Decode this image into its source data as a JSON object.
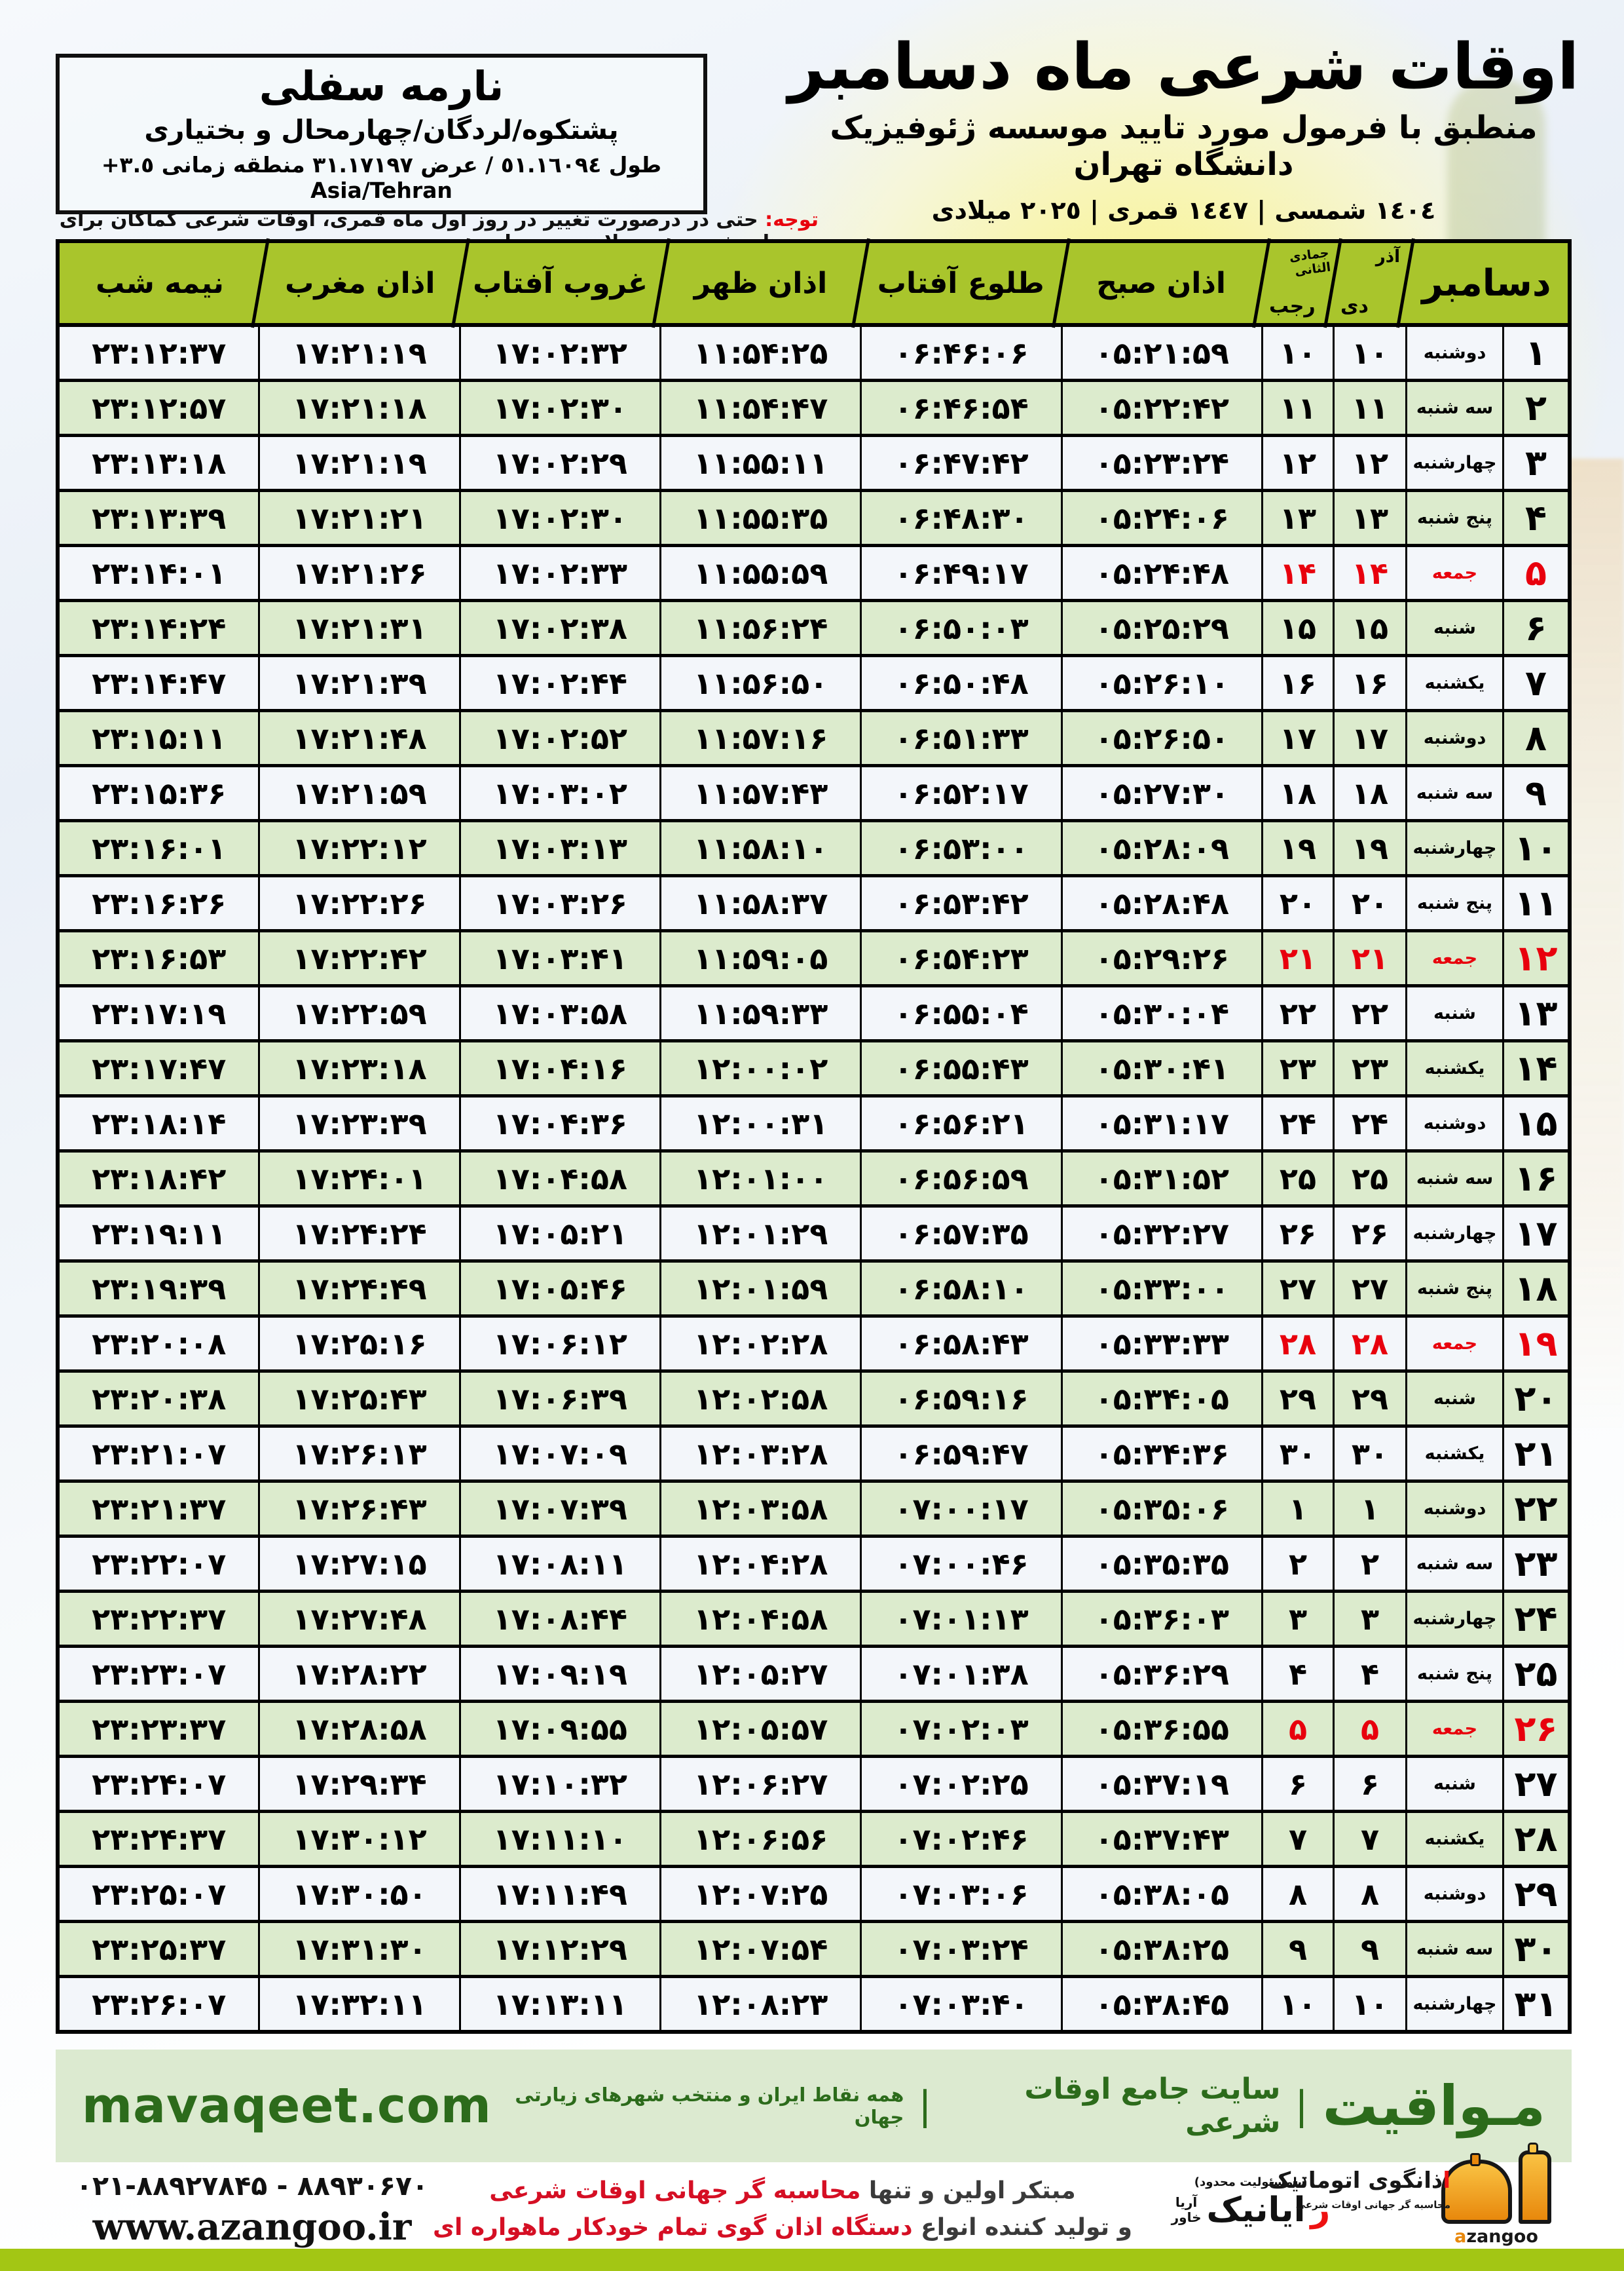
{
  "location_box": {
    "name": "نارمه سفلی",
    "region": "پشتکوه/لردگان/چهارمحال و بختیاری",
    "coords": "طول ٥١.١٦٠٩٤ / عرض ٣١.١٧١٩٧ منطقه زمانی ٣.٥+ Asia/Tehran"
  },
  "header": {
    "title": "اوقات شرعی ماه دسامبر",
    "subtitle": "منطبق با فرمول مورد تایید موسسه ژئوفیزیک دانشگاه تهران",
    "years": "١٤٠٤ شمسی | ١٤٤٧ قمری | ٢٠٢٥ میلادی"
  },
  "note": {
    "label": "توجه:",
    "text": " حتی در درصورت تغییر در روز اول ماه قمری، اوقات شرعی کماکان برای روزهای شمسی و میلادی معتبر است."
  },
  "table": {
    "headers": {
      "month": "دسامبر",
      "solar_top": "آذر",
      "solar_bottom": "دی",
      "lunar_top": "جمادی الثانی",
      "lunar_bottom": "رجب",
      "fajr": "اذان صبح",
      "sunrise": "طلوع آفتاب",
      "dhuhr": "اذان ظهر",
      "sunset": "غروب آفتاب",
      "maghrib": "اذان مغرب",
      "midnight": "نیمه شب"
    },
    "rows": [
      {
        "day": "۱",
        "weekday": "دوشنبه",
        "solar": "۱۰",
        "lunar": "۱۰",
        "fajr": "۰۵:۲۱:۵۹",
        "sunrise": "۰۶:۴۶:۰۶",
        "dhuhr": "۱۱:۵۴:۲۵",
        "sunset": "۱۷:۰۲:۳۲",
        "maghrib": "۱۷:۲۱:۱۹",
        "midnight": "۲۳:۱۲:۳۷",
        "friday": false
      },
      {
        "day": "۲",
        "weekday": "سه شنبه",
        "solar": "۱۱",
        "lunar": "۱۱",
        "fajr": "۰۵:۲۲:۴۲",
        "sunrise": "۰۶:۴۶:۵۴",
        "dhuhr": "۱۱:۵۴:۴۷",
        "sunset": "۱۷:۰۲:۳۰",
        "maghrib": "۱۷:۲۱:۱۸",
        "midnight": "۲۳:۱۲:۵۷",
        "friday": false
      },
      {
        "day": "۳",
        "weekday": "چهارشنبه",
        "solar": "۱۲",
        "lunar": "۱۲",
        "fajr": "۰۵:۲۳:۲۴",
        "sunrise": "۰۶:۴۷:۴۲",
        "dhuhr": "۱۱:۵۵:۱۱",
        "sunset": "۱۷:۰۲:۲۹",
        "maghrib": "۱۷:۲۱:۱۹",
        "midnight": "۲۳:۱۳:۱۸",
        "friday": false
      },
      {
        "day": "۴",
        "weekday": "پنج شنبه",
        "solar": "۱۳",
        "lunar": "۱۳",
        "fajr": "۰۵:۲۴:۰۶",
        "sunrise": "۰۶:۴۸:۳۰",
        "dhuhr": "۱۱:۵۵:۳۵",
        "sunset": "۱۷:۰۲:۳۰",
        "maghrib": "۱۷:۲۱:۲۱",
        "midnight": "۲۳:۱۳:۳۹",
        "friday": false
      },
      {
        "day": "۵",
        "weekday": "جمعه",
        "solar": "۱۴",
        "lunar": "۱۴",
        "fajr": "۰۵:۲۴:۴۸",
        "sunrise": "۰۶:۴۹:۱۷",
        "dhuhr": "۱۱:۵۵:۵۹",
        "sunset": "۱۷:۰۲:۳۳",
        "maghrib": "۱۷:۲۱:۲۶",
        "midnight": "۲۳:۱۴:۰۱",
        "friday": true
      },
      {
        "day": "۶",
        "weekday": "شنبه",
        "solar": "۱۵",
        "lunar": "۱۵",
        "fajr": "۰۵:۲۵:۲۹",
        "sunrise": "۰۶:۵۰:۰۳",
        "dhuhr": "۱۱:۵۶:۲۴",
        "sunset": "۱۷:۰۲:۳۸",
        "maghrib": "۱۷:۲۱:۳۱",
        "midnight": "۲۳:۱۴:۲۴",
        "friday": false
      },
      {
        "day": "۷",
        "weekday": "یکشنبه",
        "solar": "۱۶",
        "lunar": "۱۶",
        "fajr": "۰۵:۲۶:۱۰",
        "sunrise": "۰۶:۵۰:۴۸",
        "dhuhr": "۱۱:۵۶:۵۰",
        "sunset": "۱۷:۰۲:۴۴",
        "maghrib": "۱۷:۲۱:۳۹",
        "midnight": "۲۳:۱۴:۴۷",
        "friday": false
      },
      {
        "day": "۸",
        "weekday": "دوشنبه",
        "solar": "۱۷",
        "lunar": "۱۷",
        "fajr": "۰۵:۲۶:۵۰",
        "sunrise": "۰۶:۵۱:۳۳",
        "dhuhr": "۱۱:۵۷:۱۶",
        "sunset": "۱۷:۰۲:۵۲",
        "maghrib": "۱۷:۲۱:۴۸",
        "midnight": "۲۳:۱۵:۱۱",
        "friday": false
      },
      {
        "day": "۹",
        "weekday": "سه شنبه",
        "solar": "۱۸",
        "lunar": "۱۸",
        "fajr": "۰۵:۲۷:۳۰",
        "sunrise": "۰۶:۵۲:۱۷",
        "dhuhr": "۱۱:۵۷:۴۳",
        "sunset": "۱۷:۰۳:۰۲",
        "maghrib": "۱۷:۲۱:۵۹",
        "midnight": "۲۳:۱۵:۳۶",
        "friday": false
      },
      {
        "day": "۱۰",
        "weekday": "چهارشنبه",
        "solar": "۱۹",
        "lunar": "۱۹",
        "fajr": "۰۵:۲۸:۰۹",
        "sunrise": "۰۶:۵۳:۰۰",
        "dhuhr": "۱۱:۵۸:۱۰",
        "sunset": "۱۷:۰۳:۱۳",
        "maghrib": "۱۷:۲۲:۱۲",
        "midnight": "۲۳:۱۶:۰۱",
        "friday": false
      },
      {
        "day": "۱۱",
        "weekday": "پنج شنبه",
        "solar": "۲۰",
        "lunar": "۲۰",
        "fajr": "۰۵:۲۸:۴۸",
        "sunrise": "۰۶:۵۳:۴۲",
        "dhuhr": "۱۱:۵۸:۳۷",
        "sunset": "۱۷:۰۳:۲۶",
        "maghrib": "۱۷:۲۲:۲۶",
        "midnight": "۲۳:۱۶:۲۶",
        "friday": false
      },
      {
        "day": "۱۲",
        "weekday": "جمعه",
        "solar": "۲۱",
        "lunar": "۲۱",
        "fajr": "۰۵:۲۹:۲۶",
        "sunrise": "۰۶:۵۴:۲۳",
        "dhuhr": "۱۱:۵۹:۰۵",
        "sunset": "۱۷:۰۳:۴۱",
        "maghrib": "۱۷:۲۲:۴۲",
        "midnight": "۲۳:۱۶:۵۳",
        "friday": true
      },
      {
        "day": "۱۳",
        "weekday": "شنبه",
        "solar": "۲۲",
        "lunar": "۲۲",
        "fajr": "۰۵:۳۰:۰۴",
        "sunrise": "۰۶:۵۵:۰۴",
        "dhuhr": "۱۱:۵۹:۳۳",
        "sunset": "۱۷:۰۳:۵۸",
        "maghrib": "۱۷:۲۲:۵۹",
        "midnight": "۲۳:۱۷:۱۹",
        "friday": false
      },
      {
        "day": "۱۴",
        "weekday": "یکشنبه",
        "solar": "۲۳",
        "lunar": "۲۳",
        "fajr": "۰۵:۳۰:۴۱",
        "sunrise": "۰۶:۵۵:۴۳",
        "dhuhr": "۱۲:۰۰:۰۲",
        "sunset": "۱۷:۰۴:۱۶",
        "maghrib": "۱۷:۲۳:۱۸",
        "midnight": "۲۳:۱۷:۴۷",
        "friday": false
      },
      {
        "day": "۱۵",
        "weekday": "دوشنبه",
        "solar": "۲۴",
        "lunar": "۲۴",
        "fajr": "۰۵:۳۱:۱۷",
        "sunrise": "۰۶:۵۶:۲۱",
        "dhuhr": "۱۲:۰۰:۳۱",
        "sunset": "۱۷:۰۴:۳۶",
        "maghrib": "۱۷:۲۳:۳۹",
        "midnight": "۲۳:۱۸:۱۴",
        "friday": false
      },
      {
        "day": "۱۶",
        "weekday": "سه شنبه",
        "solar": "۲۵",
        "lunar": "۲۵",
        "fajr": "۰۵:۳۱:۵۲",
        "sunrise": "۰۶:۵۶:۵۹",
        "dhuhr": "۱۲:۰۱:۰۰",
        "sunset": "۱۷:۰۴:۵۸",
        "maghrib": "۱۷:۲۴:۰۱",
        "midnight": "۲۳:۱۸:۴۲",
        "friday": false
      },
      {
        "day": "۱۷",
        "weekday": "چهارشنبه",
        "solar": "۲۶",
        "lunar": "۲۶",
        "fajr": "۰۵:۳۲:۲۷",
        "sunrise": "۰۶:۵۷:۳۵",
        "dhuhr": "۱۲:۰۱:۲۹",
        "sunset": "۱۷:۰۵:۲۱",
        "maghrib": "۱۷:۲۴:۲۴",
        "midnight": "۲۳:۱۹:۱۱",
        "friday": false
      },
      {
        "day": "۱۸",
        "weekday": "پنج شنبه",
        "solar": "۲۷",
        "lunar": "۲۷",
        "fajr": "۰۵:۳۳:۰۰",
        "sunrise": "۰۶:۵۸:۱۰",
        "dhuhr": "۱۲:۰۱:۵۹",
        "sunset": "۱۷:۰۵:۴۶",
        "maghrib": "۱۷:۲۴:۴۹",
        "midnight": "۲۳:۱۹:۳۹",
        "friday": false
      },
      {
        "day": "۱۹",
        "weekday": "جمعه",
        "solar": "۲۸",
        "lunar": "۲۸",
        "fajr": "۰۵:۳۳:۳۳",
        "sunrise": "۰۶:۵۸:۴۳",
        "dhuhr": "۱۲:۰۲:۲۸",
        "sunset": "۱۷:۰۶:۱۲",
        "maghrib": "۱۷:۲۵:۱۶",
        "midnight": "۲۳:۲۰:۰۸",
        "friday": true
      },
      {
        "day": "۲۰",
        "weekday": "شنبه",
        "solar": "۲۹",
        "lunar": "۲۹",
        "fajr": "۰۵:۳۴:۰۵",
        "sunrise": "۰۶:۵۹:۱۶",
        "dhuhr": "۱۲:۰۲:۵۸",
        "sunset": "۱۷:۰۶:۳۹",
        "maghrib": "۱۷:۲۵:۴۳",
        "midnight": "۲۳:۲۰:۳۸",
        "friday": false
      },
      {
        "day": "۲۱",
        "weekday": "یکشنبه",
        "solar": "۳۰",
        "lunar": "۳۰",
        "fajr": "۰۵:۳۴:۳۶",
        "sunrise": "۰۶:۵۹:۴۷",
        "dhuhr": "۱۲:۰۳:۲۸",
        "sunset": "۱۷:۰۷:۰۹",
        "maghrib": "۱۷:۲۶:۱۳",
        "midnight": "۲۳:۲۱:۰۷",
        "friday": false
      },
      {
        "day": "۲۲",
        "weekday": "دوشنبه",
        "solar": "۱",
        "lunar": "۱",
        "fajr": "۰۵:۳۵:۰۶",
        "sunrise": "۰۷:۰۰:۱۷",
        "dhuhr": "۱۲:۰۳:۵۸",
        "sunset": "۱۷:۰۷:۳۹",
        "maghrib": "۱۷:۲۶:۴۳",
        "midnight": "۲۳:۲۱:۳۷",
        "friday": false
      },
      {
        "day": "۲۳",
        "weekday": "سه شنبه",
        "solar": "۲",
        "lunar": "۲",
        "fajr": "۰۵:۳۵:۳۵",
        "sunrise": "۰۷:۰۰:۴۶",
        "dhuhr": "۱۲:۰۴:۲۸",
        "sunset": "۱۷:۰۸:۱۱",
        "maghrib": "۱۷:۲۷:۱۵",
        "midnight": "۲۳:۲۲:۰۷",
        "friday": false
      },
      {
        "day": "۲۴",
        "weekday": "چهارشنبه",
        "solar": "۳",
        "lunar": "۳",
        "fajr": "۰۵:۳۶:۰۳",
        "sunrise": "۰۷:۰۱:۱۳",
        "dhuhr": "۱۲:۰۴:۵۸",
        "sunset": "۱۷:۰۸:۴۴",
        "maghrib": "۱۷:۲۷:۴۸",
        "midnight": "۲۳:۲۲:۳۷",
        "friday": false
      },
      {
        "day": "۲۵",
        "weekday": "پنج شنبه",
        "solar": "۴",
        "lunar": "۴",
        "fajr": "۰۵:۳۶:۲۹",
        "sunrise": "۰۷:۰۱:۳۸",
        "dhuhr": "۱۲:۰۵:۲۷",
        "sunset": "۱۷:۰۹:۱۹",
        "maghrib": "۱۷:۲۸:۲۲",
        "midnight": "۲۳:۲۳:۰۷",
        "friday": false
      },
      {
        "day": "۲۶",
        "weekday": "جمعه",
        "solar": "۵",
        "lunar": "۵",
        "fajr": "۰۵:۳۶:۵۵",
        "sunrise": "۰۷:۰۲:۰۳",
        "dhuhr": "۱۲:۰۵:۵۷",
        "sunset": "۱۷:۰۹:۵۵",
        "maghrib": "۱۷:۲۸:۵۸",
        "midnight": "۲۳:۲۳:۳۷",
        "friday": true
      },
      {
        "day": "۲۷",
        "weekday": "شنبه",
        "solar": "۶",
        "lunar": "۶",
        "fajr": "۰۵:۳۷:۱۹",
        "sunrise": "۰۷:۰۲:۲۵",
        "dhuhr": "۱۲:۰۶:۲۷",
        "sunset": "۱۷:۱۰:۳۲",
        "maghrib": "۱۷:۲۹:۳۴",
        "midnight": "۲۳:۲۴:۰۷",
        "friday": false
      },
      {
        "day": "۲۸",
        "weekday": "یکشنبه",
        "solar": "۷",
        "lunar": "۷",
        "fajr": "۰۵:۳۷:۴۳",
        "sunrise": "۰۷:۰۲:۴۶",
        "dhuhr": "۱۲:۰۶:۵۶",
        "sunset": "۱۷:۱۱:۱۰",
        "maghrib": "۱۷:۳۰:۱۲",
        "midnight": "۲۳:۲۴:۳۷",
        "friday": false
      },
      {
        "day": "۲۹",
        "weekday": "دوشنبه",
        "solar": "۸",
        "lunar": "۸",
        "fajr": "۰۵:۳۸:۰۵",
        "sunrise": "۰۷:۰۳:۰۶",
        "dhuhr": "۱۲:۰۷:۲۵",
        "sunset": "۱۷:۱۱:۴۹",
        "maghrib": "۱۷:۳۰:۵۰",
        "midnight": "۲۳:۲۵:۰۷",
        "friday": false
      },
      {
        "day": "۳۰",
        "weekday": "سه شنبه",
        "solar": "۹",
        "lunar": "۹",
        "fajr": "۰۵:۳۸:۲۵",
        "sunrise": "۰۷:۰۳:۲۴",
        "dhuhr": "۱۲:۰۷:۵۴",
        "sunset": "۱۷:۱۲:۲۹",
        "maghrib": "۱۷:۳۱:۳۰",
        "midnight": "۲۳:۲۵:۳۷",
        "friday": false
      },
      {
        "day": "۳۱",
        "weekday": "چهارشنبه",
        "solar": "۱۰",
        "lunar": "۱۰",
        "fajr": "۰۵:۳۸:۴۵",
        "sunrise": "۰۷:۰۳:۴۰",
        "dhuhr": "۱۲:۰۸:۲۳",
        "sunset": "۱۷:۱۳:۱۱",
        "maghrib": "۱۷:۳۲:۱۱",
        "midnight": "۲۳:۲۶:۰۷",
        "friday": false
      }
    ]
  },
  "footer": {
    "site": "mavaqeet.com",
    "brand": "مـواقیت",
    "pipe": "|",
    "brand_tagline": "سایت جامع اوقات شرعی",
    "brand_sub": "همه نقاط ایران و منتخب شهرهای زیارتی جهان",
    "phone": "۰۲۱-۸۸۹۲۷۸۴۵ - ۸۸۹۳۰۶۷۰",
    "website": "www.azangoo.ir",
    "promo_line1_dark": "مبتکر اولین و تنها ",
    "promo_line1_red": "محاسبه گر جهانی اوقات شرعی",
    "promo_line2_dark": "و تولید کننده انواع ",
    "promo_line2_red": "دستگاه اذان گوی تمام خودکار ماهواره ای",
    "rayanik_note": "(بامسئولیت محدود)",
    "rayanik_r": "ر",
    "rayanik_name": "ایانیک",
    "rayanik_sub1": "آریا",
    "rayanik_sub2": "خاور",
    "azangoo_a": "a",
    "azangoo_rest": "zangoo",
    "azangoo_fa_alef": "ا",
    "azangoo_fa_rest": "ذانگوی اتوماتیک",
    "azangoo_fa_sub": "محاسبه گر جهانی اوقات شرعی"
  },
  "colors": {
    "header_green": "#a9c52c",
    "row_green": "#dcebcd",
    "row_light": "#f3f6fa",
    "friday_red": "#e8000d",
    "band_green_bg": "#dcead0",
    "band_green_text": "#2c6b1b",
    "bottom_bar": "#a3c614"
  }
}
